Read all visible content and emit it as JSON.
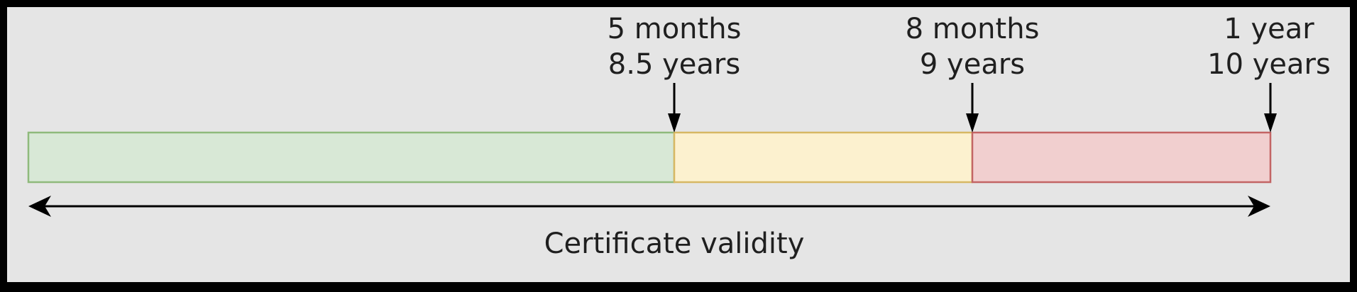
{
  "diagram": {
    "segments": [
      {
        "name": "green-zone",
        "fill": "#d8e8d6",
        "stroke": "#8fba7c"
      },
      {
        "name": "yellow-zone",
        "fill": "#fcf1cf",
        "stroke": "#d7b864"
      },
      {
        "name": "red-zone",
        "fill": "#f1cfcf",
        "stroke": "#c36565"
      }
    ],
    "markers": [
      {
        "top": "5 months",
        "bottom": "8.5 years"
      },
      {
        "top": "8 months",
        "bottom": "9 years"
      },
      {
        "top": "1 year",
        "bottom": "10 years"
      }
    ],
    "axis_label": "Certificate validity",
    "colors": {
      "panel_background": "#e5e5e5",
      "frame": "#000000",
      "ink": "#000000"
    }
  }
}
